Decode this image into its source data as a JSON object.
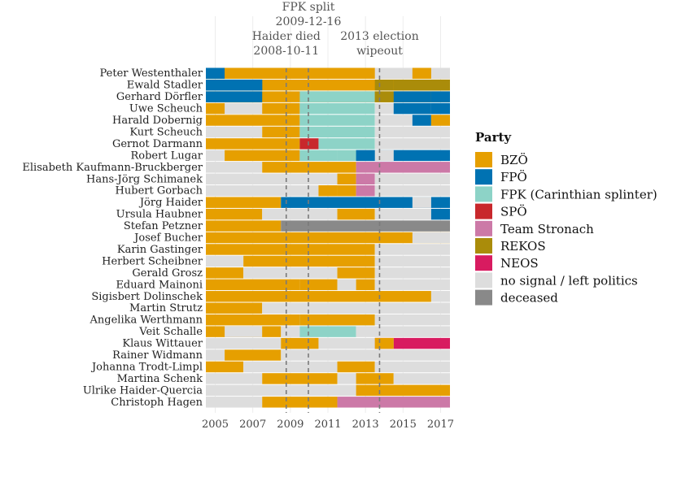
{
  "chart_data": {
    "type": "timeline",
    "x_ticks": [
      2005,
      2007,
      2009,
      2011,
      2013,
      2015,
      2017
    ],
    "xlim": [
      2004.5,
      2017.5
    ],
    "grid": true,
    "legend_placement": "right",
    "legend_title": "Party",
    "categories": [
      {
        "key": "BZO",
        "label": "BZÖ",
        "color": "#E69F00"
      },
      {
        "key": "FPO",
        "label": "FPÖ",
        "color": "#0072B2"
      },
      {
        "key": "FPK",
        "label": "FPK (Carinthian splinter)",
        "color": "#8DD3C7"
      },
      {
        "key": "SPO",
        "label": "SPÖ",
        "color": "#C8282C"
      },
      {
        "key": "TS",
        "label": "Team Stronach",
        "color": "#CC79A7"
      },
      {
        "key": "REKOS",
        "label": "REKOS",
        "color": "#AA8C0A"
      },
      {
        "key": "NEOS",
        "label": "NEOS",
        "color": "#D81B60"
      },
      {
        "key": "NS",
        "label": "no signal / left politics",
        "color": "#DDDDDD"
      },
      {
        "key": "DEC",
        "label": "deceased",
        "color": "#898989"
      }
    ],
    "events": [
      {
        "date": 2008.78,
        "lines": [
          "Haider died",
          "2008-10-11"
        ]
      },
      {
        "date": 2009.96,
        "lines": [
          "FPK split",
          "2009-12-16"
        ]
      },
      {
        "date": 2013.75,
        "lines": [
          "2013 election",
          "wipeout"
        ]
      }
    ],
    "rows": [
      {
        "name": "Peter Westenthaler",
        "segments": [
          [
            2004.5,
            2017.5,
            "BZO"
          ],
          [
            2004.5,
            2005.5,
            "FPO"
          ],
          [
            2013.5,
            2015.5,
            "NS"
          ],
          [
            2016.5,
            2017.5,
            "NS"
          ]
        ]
      },
      {
        "name": "Ewald Stadler",
        "segments": [
          [
            2004.5,
            2017.5,
            "BZO"
          ],
          [
            2004.5,
            2007.5,
            "FPO"
          ],
          [
            2006.5,
            2007.5,
            "FPO"
          ],
          [
            2004.5,
            2006.5,
            "FPO"
          ],
          [
            2013.5,
            2014.5,
            "REKOS"
          ],
          [
            2014.5,
            2017.5,
            "REKOS"
          ],
          [
            2015.5,
            2017.5,
            "REKOS"
          ]
        ]
      },
      {
        "name": "Gerhard Dörfler",
        "segments": [
          [
            2004.5,
            2017.5,
            "BZO"
          ],
          [
            2004.5,
            2007.5,
            "FPO"
          ],
          [
            2009.5,
            2013.5,
            "FPK"
          ],
          [
            2013.5,
            2014.5,
            "REKOS"
          ],
          [
            2014.5,
            2016.5,
            "FPO"
          ],
          [
            2016.5,
            2017.5,
            "FPO"
          ]
        ]
      },
      {
        "name": "Uwe Scheuch",
        "segments": [
          [
            2004.5,
            2009.5,
            "BZO"
          ],
          [
            2005.5,
            2007.5,
            "NS"
          ],
          [
            2009.5,
            2013.5,
            "FPK"
          ],
          [
            2013.5,
            2014.5,
            "NS"
          ],
          [
            2014.5,
            2016.5,
            "FPO"
          ],
          [
            2016.5,
            2017.5,
            "FPO"
          ]
        ]
      },
      {
        "name": "Harald Dobernig",
        "segments": [
          [
            2004.5,
            2009.5,
            "BZO"
          ],
          [
            2009.5,
            2013.5,
            "FPK"
          ],
          [
            2013.5,
            2015.5,
            "NS"
          ],
          [
            2015.5,
            2016.5,
            "FPO"
          ],
          [
            2016.5,
            2017.5,
            "NS"
          ],
          [
            2016.5,
            2017.5,
            "BZO"
          ]
        ]
      },
      {
        "name": "Kurt Scheuch",
        "segments": [
          [
            2004.5,
            2007.5,
            "NS"
          ],
          [
            2007.5,
            2009.5,
            "BZO"
          ],
          [
            2009.5,
            2013.5,
            "FPK"
          ],
          [
            2013.5,
            2017.5,
            "NS"
          ]
        ]
      },
      {
        "name": "Gernot Darmann",
        "segments": [
          [
            2004.5,
            2009.5,
            "BZO"
          ],
          [
            2009.5,
            2010.5,
            "SPO"
          ],
          [
            2010.5,
            2013.5,
            "FPK"
          ],
          [
            2013.5,
            2017.5,
            "NS"
          ]
        ]
      },
      {
        "name": "Robert Lugar",
        "segments": [
          [
            2004.5,
            2005.5,
            "NS"
          ],
          [
            2005.5,
            2009.5,
            "BZO"
          ],
          [
            2009.5,
            2011.5,
            "FPK"
          ],
          [
            2011.5,
            2013.5,
            "FPK"
          ],
          [
            2012.5,
            2014.5,
            "FPO"
          ],
          [
            2014.5,
            2017.5,
            "FPO"
          ],
          [
            2013.5,
            2014.5,
            "NS"
          ]
        ]
      },
      {
        "name": "Elisabeth Kaufmann-Bruckberger",
        "segments": [
          [
            2004.5,
            2007.5,
            "NS"
          ],
          [
            2007.5,
            2012.5,
            "BZO"
          ],
          [
            2012.5,
            2017.5,
            "TS"
          ]
        ]
      },
      {
        "name": "Hans-Jörg Schimanek",
        "segments": [
          [
            2004.5,
            2011.5,
            "NS"
          ],
          [
            2011.5,
            2012.5,
            "BZO"
          ],
          [
            2012.5,
            2013.5,
            "TS"
          ],
          [
            2013.5,
            2017.5,
            "NS"
          ]
        ]
      },
      {
        "name": "Hubert Gorbach",
        "segments": [
          [
            2004.5,
            2010.5,
            "NS"
          ],
          [
            2010.5,
            2011.5,
            "BZO"
          ],
          [
            2011.5,
            2012.5,
            "NS"
          ],
          [
            2011.5,
            2012.5,
            "BZO"
          ],
          [
            2012.5,
            2013.5,
            "TS"
          ],
          [
            2013.5,
            2017.5,
            "NS"
          ]
        ]
      },
      {
        "name": "Jörg Haider",
        "segments": [
          [
            2004.5,
            2008.5,
            "BZO"
          ],
          [
            2008.5,
            2017.5,
            "FPO"
          ],
          [
            2015.5,
            2016.5,
            "NS"
          ]
        ]
      },
      {
        "name": "Ursula Haubner",
        "segments": [
          [
            2004.5,
            2007.5,
            "BZO"
          ],
          [
            2007.5,
            2011.5,
            "NS"
          ],
          [
            2011.5,
            2013.5,
            "BZO"
          ],
          [
            2013.5,
            2016.5,
            "NS"
          ],
          [
            2016.5,
            2017.5,
            "FPO"
          ]
        ]
      },
      {
        "name": "Stefan Petzner",
        "segments": [
          [
            2004.5,
            2008.5,
            "BZO"
          ],
          [
            2008.5,
            2017.5,
            "DEC"
          ]
        ]
      },
      {
        "name": "Josef Bucher",
        "segments": [
          [
            2004.5,
            2017.5,
            "BZO"
          ],
          [
            2015.5,
            2017.5,
            "NS"
          ]
        ]
      },
      {
        "name": "Karin Gastinger",
        "segments": [
          [
            2004.5,
            2013.5,
            "BZO"
          ],
          [
            2013.5,
            2017.5,
            "NS"
          ]
        ]
      },
      {
        "name": "Herbert Scheibner",
        "segments": [
          [
            2004.5,
            2006.5,
            "NS"
          ],
          [
            2006.5,
            2013.5,
            "BZO"
          ],
          [
            2013.5,
            2017.5,
            "NS"
          ]
        ]
      },
      {
        "name": "Gerald Grosz",
        "segments": [
          [
            2004.5,
            2006.5,
            "BZO"
          ],
          [
            2006.5,
            2011.5,
            "NS"
          ],
          [
            2011.5,
            2013.5,
            "BZO"
          ],
          [
            2013.5,
            2017.5,
            "NS"
          ]
        ]
      },
      {
        "name": "Eduard Mainoni",
        "segments": [
          [
            2004.5,
            2009.5,
            "BZO"
          ],
          [
            2009.5,
            2011.5,
            "BZO"
          ],
          [
            2011.5,
            2012.5,
            "NS"
          ],
          [
            2012.5,
            2013.5,
            "BZO"
          ],
          [
            2013.5,
            2017.5,
            "NS"
          ]
        ]
      },
      {
        "name": "Sigisbert Dolinschek",
        "segments": [
          [
            2004.5,
            2016.5,
            "BZO"
          ],
          [
            2016.5,
            2017.5,
            "NS"
          ]
        ]
      },
      {
        "name": "Martin Strutz",
        "segments": [
          [
            2004.5,
            2007.5,
            "BZO"
          ],
          [
            2007.5,
            2017.5,
            "NS"
          ]
        ]
      },
      {
        "name": "Angelika Werthmann",
        "segments": [
          [
            2004.5,
            2009.5,
            "BZO"
          ],
          [
            2009.5,
            2013.5,
            "FPK"
          ],
          [
            2009.5,
            2013.5,
            "BZO"
          ],
          [
            2013.5,
            2017.5,
            "NS"
          ]
        ]
      },
      {
        "name": "Veit Schalle",
        "segments": [
          [
            2004.5,
            2007.5,
            "BZO"
          ],
          [
            2005.5,
            2007.5,
            "NS"
          ],
          [
            2007.5,
            2008.5,
            "BZO"
          ],
          [
            2008.5,
            2009.5,
            "NS"
          ],
          [
            2009.5,
            2012.5,
            "FPK"
          ],
          [
            2012.5,
            2017.5,
            "NS"
          ]
        ]
      },
      {
        "name": "Klaus Wittauer",
        "segments": [
          [
            2004.5,
            2010.5,
            "NS"
          ],
          [
            2008.5,
            2010.5,
            "BZO"
          ],
          [
            2010.5,
            2013.5,
            "NS"
          ],
          [
            2013.5,
            2017.5,
            "NEOS"
          ],
          [
            2013.5,
            2014.5,
            "NS"
          ],
          [
            2013.5,
            2014.5,
            "BZO"
          ]
        ]
      },
      {
        "name": "Rainer Widmann",
        "segments": [
          [
            2004.5,
            2005.5,
            "NS"
          ],
          [
            2005.5,
            2008.5,
            "BZO"
          ],
          [
            2008.5,
            2017.5,
            "NS"
          ]
        ]
      },
      {
        "name": "Johanna Trodt-Limpl",
        "segments": [
          [
            2004.5,
            2006.5,
            "BZO"
          ],
          [
            2006.5,
            2011.5,
            "NS"
          ],
          [
            2011.5,
            2013.5,
            "BZO"
          ],
          [
            2013.5,
            2017.5,
            "NS"
          ]
        ]
      },
      {
        "name": "Martina Schenk",
        "segments": [
          [
            2004.5,
            2007.5,
            "NS"
          ],
          [
            2007.5,
            2011.5,
            "BZO"
          ],
          [
            2011.5,
            2012.5,
            "NS"
          ],
          [
            2012.5,
            2014.5,
            "BZO"
          ],
          [
            2014.5,
            2017.5,
            "NS"
          ]
        ]
      },
      {
        "name": "Ulrike Haider-Quercia",
        "segments": [
          [
            2004.5,
            2012.5,
            "NS"
          ],
          [
            2012.5,
            2017.5,
            "BZO"
          ]
        ]
      },
      {
        "name": "Christoph Hagen",
        "segments": [
          [
            2004.5,
            2007.5,
            "NS"
          ],
          [
            2007.5,
            2011.5,
            "BZO"
          ],
          [
            2011.5,
            2017.5,
            "TS"
          ]
        ]
      }
    ]
  }
}
